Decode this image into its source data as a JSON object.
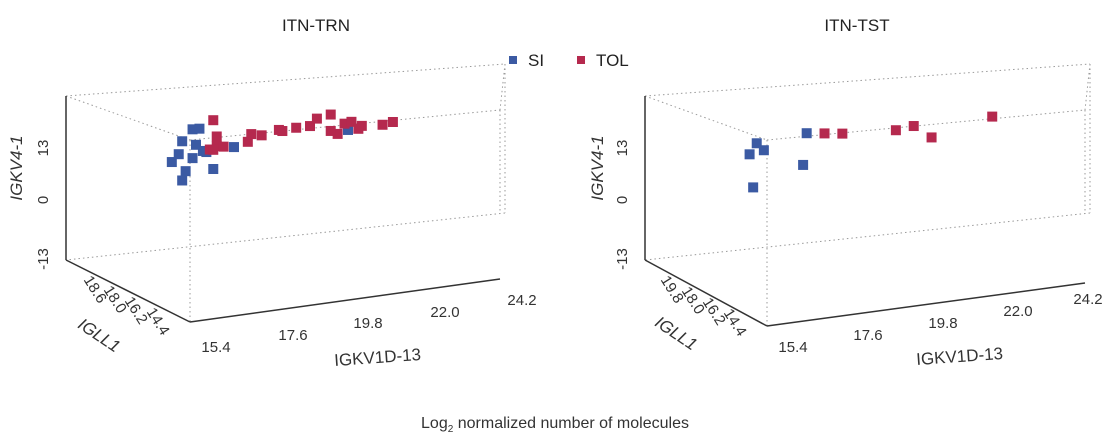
{
  "colors": {
    "SI": "#3b5aa3",
    "TOL": "#b5294e"
  },
  "legend": [
    {
      "label": "SI",
      "color": "#3b5aa3"
    },
    {
      "label": "TOL",
      "color": "#b5294e"
    }
  ],
  "caption": {
    "prefix": "Log",
    "sub": "2",
    "rest": " normalized number of molecules"
  },
  "chart_data": [
    {
      "type": "scatter",
      "title": "ITN-TRN",
      "xlabel": "IGKV1D-13",
      "ylabel": "IGKV4-1",
      "zlabel": "IGLL1",
      "xticks": [
        "15.4",
        "17.6",
        "19.8",
        "22.0",
        "24.2"
      ],
      "yticks": [
        "-13",
        "0",
        "13"
      ],
      "zticks": [
        "18.6",
        "18.0",
        "16.2",
        "14.4"
      ],
      "series": [
        {
          "name": "SI",
          "points": [
            [
              15.6,
              12.2
            ],
            [
              15.7,
              11.9
            ],
            [
              15.4,
              13.8
            ],
            [
              15.3,
              10.5
            ],
            [
              14.7,
              9.7
            ],
            [
              14.9,
              11.6
            ],
            [
              15.0,
              14.8
            ],
            [
              15.9,
              7.6
            ],
            [
              16.5,
              12.9
            ],
            [
              19.8,
              16.2
            ],
            [
              15.1,
              7.3
            ],
            [
              15.0,
              5.0
            ],
            [
              15.3,
              17.7
            ],
            [
              15.5,
              17.8
            ]
          ]
        },
        {
          "name": "TOL",
          "points": [
            [
              15.9,
              19.8
            ],
            [
              16.0,
              15.7
            ],
            [
              16.0,
              13.3
            ],
            [
              15.8,
              12.5
            ],
            [
              16.2,
              13.1
            ],
            [
              15.9,
              12.4
            ],
            [
              16.9,
              14.1
            ],
            [
              17.0,
              16.0
            ],
            [
              17.8,
              16.8
            ],
            [
              17.3,
              15.6
            ],
            [
              17.9,
              16.5
            ],
            [
              18.3,
              17.2
            ],
            [
              18.7,
              17.5
            ],
            [
              19.3,
              20.2
            ],
            [
              19.7,
              17.8
            ],
            [
              19.9,
              18.2
            ],
            [
              19.5,
              15.3
            ],
            [
              19.3,
              16.1
            ],
            [
              20.2,
              17.1
            ],
            [
              20.8,
              17.2
            ],
            [
              21.1,
              17.8
            ],
            [
              18.9,
              19.3
            ],
            [
              20.1,
              16.4
            ]
          ]
        }
      ]
    },
    {
      "type": "scatter",
      "title": "ITN-TST",
      "xlabel": "IGKV1D-13",
      "ylabel": "IGKV4-1",
      "zlabel": "IGLL1",
      "xticks": [
        "15.4",
        "17.6",
        "19.8",
        "22.0",
        "24.2"
      ],
      "yticks": [
        "-13",
        "0",
        "13"
      ],
      "zticks": [
        "19.8",
        "18.0",
        "16.2",
        "14.4"
      ],
      "series": [
        {
          "name": "SI",
          "points": [
            [
              15.0,
              14.3
            ],
            [
              14.8,
              11.6
            ],
            [
              15.2,
              12.5
            ],
            [
              16.4,
              16.4
            ],
            [
              16.3,
              8.5
            ],
            [
              14.9,
              3.3
            ]
          ]
        },
        {
          "name": "TOL",
          "points": [
            [
              16.9,
              16.2
            ],
            [
              17.4,
              16.0
            ],
            [
              18.9,
              16.4
            ],
            [
              19.4,
              17.3
            ],
            [
              19.9,
              14.3
            ],
            [
              21.6,
              19.0
            ]
          ]
        }
      ]
    }
  ]
}
